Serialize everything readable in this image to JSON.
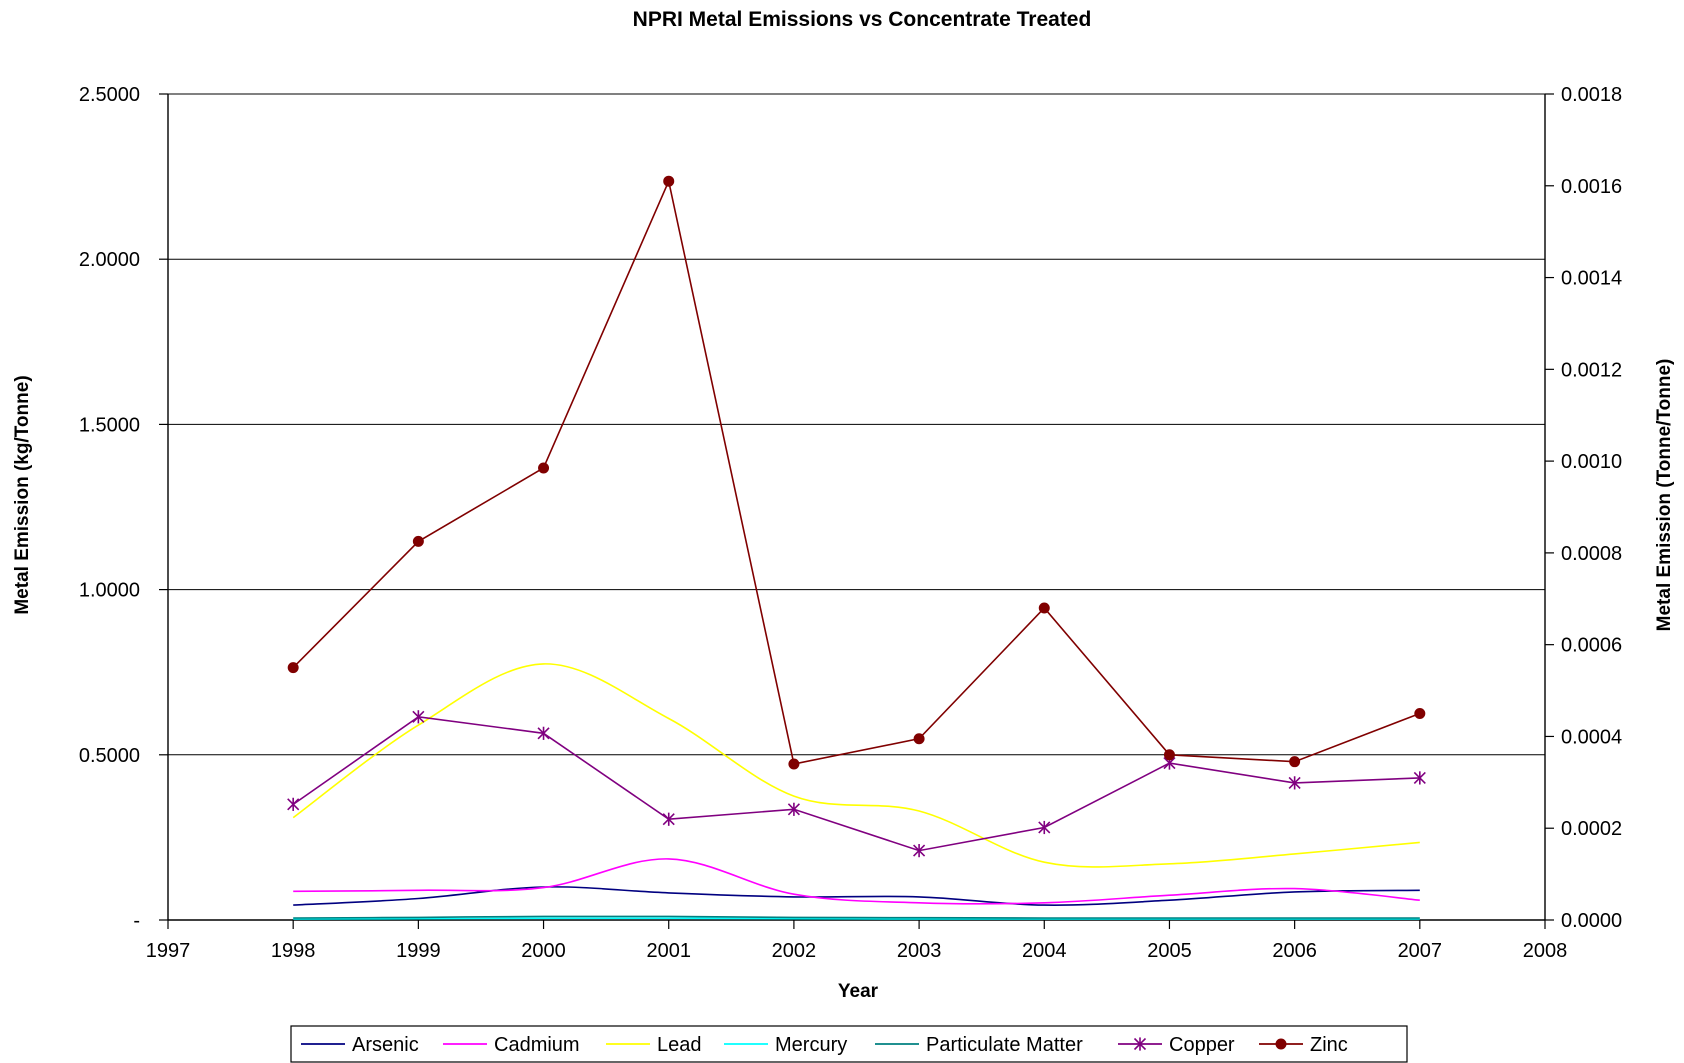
{
  "chart_data": {
    "type": "line",
    "title": "NPRI Metal Emissions vs Concentrate Treated",
    "xlabel": "Year",
    "ylabel_left": "Metal Emission (kg/Tonne)",
    "ylabel_right": "Metal Emission (Tonne/Tonne)",
    "xlim": [
      1997,
      2008
    ],
    "ylim_left": [
      0,
      2.5
    ],
    "ylim_right": [
      0,
      0.0018
    ],
    "x_ticks": [
      "1997",
      "1998",
      "1999",
      "2000",
      "2001",
      "2002",
      "2003",
      "2004",
      "2005",
      "2006",
      "2007",
      "2008"
    ],
    "y_ticks_left": [
      "-",
      "0.5000",
      "1.0000",
      "1.5000",
      "2.0000",
      "2.5000"
    ],
    "y_ticks_right": [
      "0.0000",
      "0.0002",
      "0.0004",
      "0.0006",
      "0.0008",
      "0.0010",
      "0.0012",
      "0.0014",
      "0.0016",
      "0.0018"
    ],
    "grid": "horizontal-left-major",
    "legend_position": "bottom",
    "x": [
      1998,
      1999,
      2000,
      2001,
      2002,
      2003,
      2004,
      2005,
      2006,
      2007
    ],
    "series": [
      {
        "name": "Arsenic",
        "axis": "left",
        "color": "#000080",
        "marker": "none",
        "smooth": true,
        "values": [
          0.045,
          0.065,
          0.1,
          0.082,
          0.07,
          0.07,
          0.045,
          0.06,
          0.085,
          0.09
        ]
      },
      {
        "name": "Cadmium",
        "axis": "left",
        "color": "#ff00ff",
        "marker": "none",
        "smooth": true,
        "values": [
          0.087,
          0.09,
          0.098,
          0.185,
          0.078,
          0.052,
          0.052,
          0.075,
          0.095,
          0.06
        ]
      },
      {
        "name": "Lead",
        "axis": "left",
        "color": "#ffff00",
        "marker": "none",
        "smooth": true,
        "values": [
          0.31,
          0.59,
          0.775,
          0.61,
          0.375,
          0.33,
          0.175,
          0.17,
          0.2,
          0.235
        ]
      },
      {
        "name": "Mercury",
        "axis": "left",
        "color": "#00ffff",
        "marker": "none",
        "smooth": true,
        "values": [
          0.003,
          0.004,
          0.005,
          0.005,
          0.004,
          0.003,
          0.003,
          0.003,
          0.003,
          0.003
        ]
      },
      {
        "name": "Particulate Matter",
        "axis": "left",
        "color": "#008080",
        "marker": "none",
        "smooth": true,
        "values": [
          0.006,
          0.008,
          0.011,
          0.011,
          0.008,
          0.007,
          0.006,
          0.006,
          0.006,
          0.006
        ]
      },
      {
        "name": "Copper",
        "axis": "left",
        "color": "#800080",
        "marker": "asterisk",
        "smooth": false,
        "values": [
          0.35,
          0.615,
          0.565,
          0.305,
          0.335,
          0.21,
          0.28,
          0.475,
          0.415,
          0.43
        ]
      },
      {
        "name": "Zinc",
        "axis": "right",
        "color": "#800000",
        "marker": "circle",
        "smooth": false,
        "values": [
          0.00055,
          0.000825,
          0.000985,
          0.00161,
          0.00034,
          0.000395,
          0.00068,
          0.00036,
          0.000345,
          0.00045
        ]
      }
    ]
  }
}
